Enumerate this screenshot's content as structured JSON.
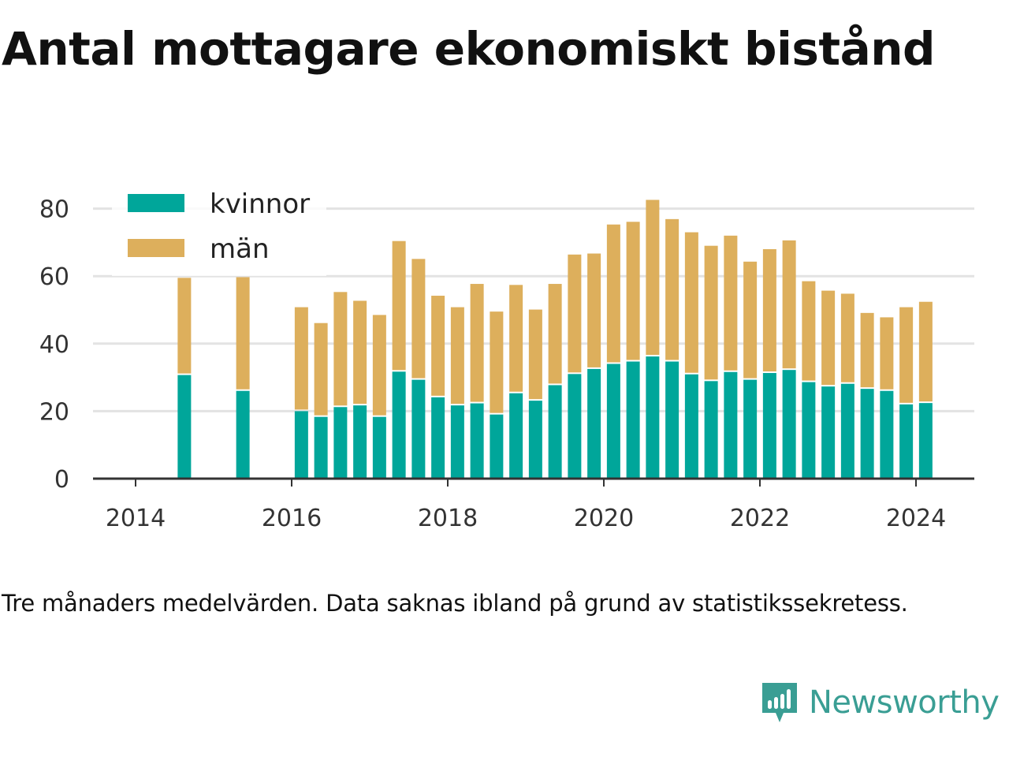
{
  "title": "Antal mottagare ekonomiskt bistånd",
  "caption": "Tre månaders medelvärden. Data saknas ibland på grund av statistikssekretess.",
  "brand": {
    "name": "Newsworthy",
    "icon": "newsworthy-logo-icon"
  },
  "colors": {
    "kvinnor": "#00a69a",
    "man": "#ddaf5c",
    "grid": "#e3e3e3",
    "axis": "#333333"
  },
  "chart_data": {
    "type": "bar",
    "stacked": true,
    "x_ticks": [
      "2014",
      "2016",
      "2018",
      "2020",
      "2022",
      "2024"
    ],
    "y_ticks": [
      "0",
      "20",
      "40",
      "60",
      "80"
    ],
    "ylim": [
      0,
      90
    ],
    "grid": true,
    "legend_position": "top-left",
    "x": [
      "2014-Q3",
      "2015-Q2",
      "2016-Q1",
      "2016-Q2",
      "2016-Q3",
      "2016-Q4",
      "2017-Q1",
      "2017-Q2",
      "2017-Q3",
      "2017-Q4",
      "2018-Q1",
      "2018-Q2",
      "2018-Q3",
      "2018-Q4",
      "2019-Q1",
      "2019-Q2",
      "2019-Q3",
      "2019-Q4",
      "2020-Q1",
      "2020-Q2",
      "2020-Q3",
      "2020-Q4",
      "2021-Q1",
      "2021-Q2",
      "2021-Q3",
      "2021-Q4",
      "2022-Q1",
      "2022-Q2",
      "2022-Q3",
      "2022-Q4",
      "2023-Q1",
      "2023-Q2",
      "2023-Q3",
      "2023-Q4",
      "2024-Q1"
    ],
    "series": [
      {
        "name": "kvinnor",
        "color": "#00a69a",
        "values": [
          30.7,
          26,
          20,
          18.3,
          21.2,
          21.7,
          18.3,
          31.7,
          29.3,
          24.1,
          21.7,
          22.3,
          19,
          25.3,
          23.1,
          27.7,
          31,
          32.5,
          34,
          34.7,
          36.2,
          34.7,
          30.9,
          28.9,
          31.6,
          29.3,
          31.3,
          32.2,
          28.6,
          27.3,
          28.1,
          26.6,
          26,
          22,
          22.4
        ]
      },
      {
        "name": "män",
        "color": "#ddaf5c",
        "values": [
          28.8,
          33.7,
          30.8,
          27.8,
          34.1,
          31,
          30.2,
          38.7,
          35.8,
          30.1,
          29.1,
          35.4,
          30.5,
          32.1,
          27,
          30,
          35.4,
          34.2,
          41.3,
          41.4,
          46.4,
          42.2,
          42.1,
          40.1,
          40.4,
          35,
          36.7,
          38.4,
          29.9,
          28.4,
          26.7,
          22.5,
          21.8,
          28.8,
          30
        ]
      }
    ]
  }
}
